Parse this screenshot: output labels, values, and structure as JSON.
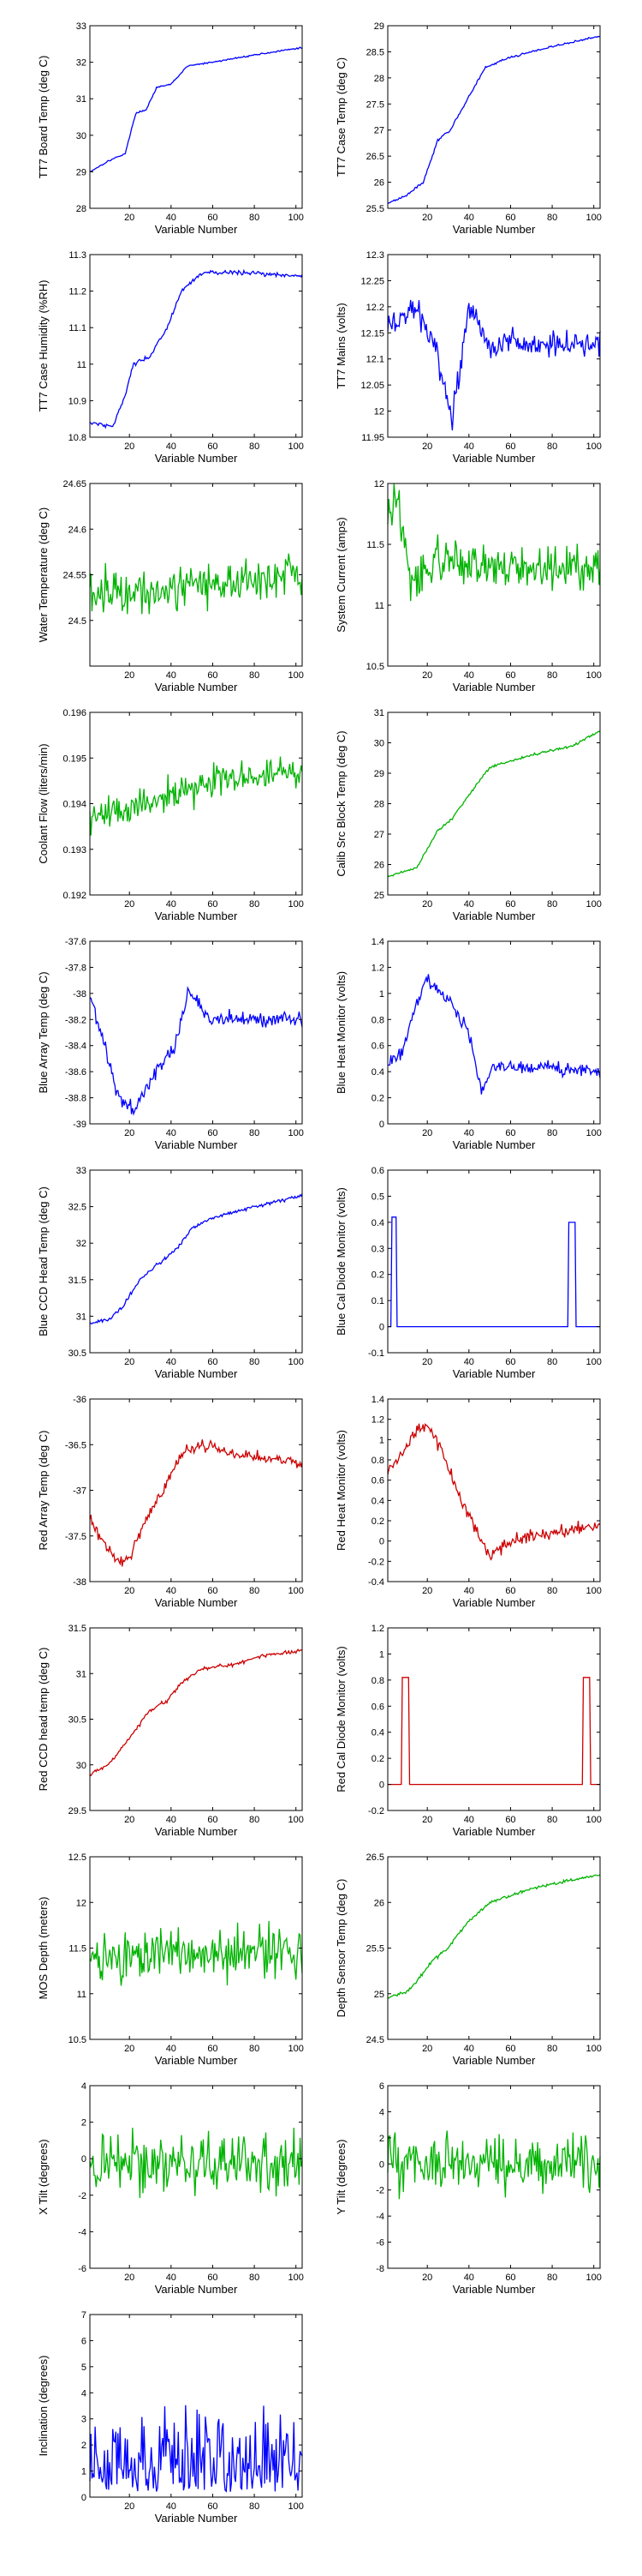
{
  "colors": {
    "blue": "#0000ff",
    "green": "#00b300",
    "red": "#cc0000",
    "axis": "#000000",
    "background": "#ffffff"
  },
  "chart_data": [
    {
      "type": "line",
      "ylabel": "TT7 Board Temp (deg C)",
      "xlabel": "Variable Number",
      "xlim": [
        1,
        103
      ],
      "ylim": [
        28,
        33
      ],
      "yticks": [
        28,
        29,
        30,
        31,
        32,
        33
      ],
      "xticks": [
        20,
        40,
        60,
        80,
        100
      ],
      "color": "blue",
      "shape": "ramp",
      "anchors": [
        [
          1,
          29.0
        ],
        [
          10,
          29.3
        ],
        [
          18,
          29.5
        ],
        [
          23,
          30.6
        ],
        [
          28,
          30.7
        ],
        [
          33,
          31.3
        ],
        [
          40,
          31.4
        ],
        [
          48,
          31.9
        ],
        [
          60,
          32.0
        ],
        [
          80,
          32.2
        ],
        [
          103,
          32.4
        ]
      ],
      "noise": 0.02
    },
    {
      "type": "line",
      "ylabel": "TT7 Case Temp (deg C)",
      "xlabel": "Variable Number",
      "xlim": [
        1,
        103
      ],
      "ylim": [
        25.5,
        29
      ],
      "yticks": [
        25.5,
        26,
        26.5,
        27,
        27.5,
        28,
        28.5,
        29
      ],
      "xticks": [
        20,
        40,
        60,
        80,
        100
      ],
      "color": "blue",
      "shape": "ramp",
      "anchors": [
        [
          1,
          25.6
        ],
        [
          10,
          25.75
        ],
        [
          18,
          26.0
        ],
        [
          25,
          26.8
        ],
        [
          31,
          27.0
        ],
        [
          38,
          27.5
        ],
        [
          48,
          28.2
        ],
        [
          60,
          28.4
        ],
        [
          80,
          28.6
        ],
        [
          103,
          28.8
        ]
      ],
      "noise": 0.02
    },
    {
      "type": "line",
      "ylabel": "TT7 Case Humidity (%RH)",
      "xlabel": "Variable Number",
      "xlim": [
        1,
        103
      ],
      "ylim": [
        10.8,
        11.3
      ],
      "yticks": [
        10.8,
        10.9,
        11,
        11.1,
        11.2,
        11.3
      ],
      "xticks": [
        20,
        40,
        60,
        80,
        100
      ],
      "color": "blue",
      "shape": "ramp",
      "anchors": [
        [
          1,
          10.84
        ],
        [
          12,
          10.83
        ],
        [
          17,
          10.9
        ],
        [
          22,
          11.0
        ],
        [
          30,
          11.02
        ],
        [
          38,
          11.1
        ],
        [
          45,
          11.2
        ],
        [
          55,
          11.25
        ],
        [
          80,
          11.25
        ],
        [
          103,
          11.24
        ]
      ],
      "noise": 0.006
    },
    {
      "type": "line",
      "ylabel": "TT7 Mains  (volts)",
      "xlabel": "Variable Number",
      "xlim": [
        1,
        103
      ],
      "ylim": [
        11.95,
        12.3
      ],
      "yticks": [
        11.95,
        12,
        12.05,
        12.1,
        12.15,
        12.2,
        12.25,
        12.3
      ],
      "xticks": [
        20,
        40,
        60,
        80,
        100
      ],
      "color": "blue",
      "shape": "noise",
      "anchors": [
        [
          1,
          12.16
        ],
        [
          15,
          12.2
        ],
        [
          25,
          12.1
        ],
        [
          32,
          11.98
        ],
        [
          40,
          12.2
        ],
        [
          50,
          12.13
        ],
        [
          103,
          12.13
        ]
      ],
      "noise": 0.025
    },
    {
      "type": "line",
      "ylabel": "Water Temperature (deg C)",
      "xlabel": "Variable Number",
      "xlim": [
        1,
        103
      ],
      "ylim": [
        24.45,
        24.65
      ],
      "yticks": [
        24.5,
        24.55,
        24.6,
        24.65
      ],
      "xticks": [
        20,
        40,
        60,
        80,
        100
      ],
      "color": "green",
      "shape": "noise",
      "anchors": [
        [
          1,
          24.53
        ],
        [
          103,
          24.55
        ]
      ],
      "noise": 0.025
    },
    {
      "type": "line",
      "ylabel": "System Current (amps)",
      "xlabel": "Variable Number",
      "xlim": [
        1,
        103
      ],
      "ylim": [
        10.5,
        12
      ],
      "yticks": [
        10.5,
        11,
        11.5,
        12
      ],
      "xticks": [
        20,
        40,
        60,
        80,
        100
      ],
      "color": "green",
      "shape": "noise",
      "anchors": [
        [
          1,
          11.7
        ],
        [
          6,
          11.9
        ],
        [
          12,
          11.1
        ],
        [
          20,
          11.35
        ],
        [
          103,
          11.3
        ]
      ],
      "noise": 0.18
    },
    {
      "type": "line",
      "ylabel": "Coolant Flow (liters/min)",
      "xlabel": "Variable Number",
      "xlim": [
        1,
        103
      ],
      "ylim": [
        0.192,
        0.196
      ],
      "yticks": [
        0.192,
        0.193,
        0.194,
        0.195,
        0.196
      ],
      "xticks": [
        20,
        40,
        60,
        80,
        100
      ],
      "color": "green",
      "shape": "noise",
      "anchors": [
        [
          1,
          0.1937
        ],
        [
          30,
          0.194
        ],
        [
          60,
          0.1945
        ],
        [
          103,
          0.1947
        ]
      ],
      "noise": 0.00035
    },
    {
      "type": "line",
      "ylabel": "Calib Src Block Temp (deg C)",
      "xlabel": "Variable Number",
      "xlim": [
        1,
        103
      ],
      "ylim": [
        25,
        31
      ],
      "yticks": [
        25,
        26,
        27,
        28,
        29,
        30,
        31
      ],
      "xticks": [
        20,
        40,
        60,
        80,
        100
      ],
      "color": "green",
      "shape": "ramp",
      "anchors": [
        [
          1,
          25.6
        ],
        [
          15,
          25.9
        ],
        [
          25,
          27.1
        ],
        [
          32,
          27.5
        ],
        [
          40,
          28.3
        ],
        [
          50,
          29.2
        ],
        [
          70,
          29.6
        ],
        [
          90,
          29.9
        ],
        [
          103,
          30.4
        ]
      ],
      "noise": 0.04
    },
    {
      "type": "line",
      "ylabel": "Blue Array Temp (deg C)",
      "xlabel": "Variable Number",
      "xlim": [
        1,
        103
      ],
      "ylim": [
        -39,
        -37.6
      ],
      "yticks": [
        -39,
        -38.8,
        -38.6,
        -38.4,
        -38.2,
        -38,
        -37.8,
        -37.6
      ],
      "xticks": [
        20,
        40,
        60,
        80,
        100
      ],
      "color": "blue",
      "shape": "noise",
      "anchors": [
        [
          1,
          -38.0
        ],
        [
          8,
          -38.4
        ],
        [
          15,
          -38.8
        ],
        [
          22,
          -38.9
        ],
        [
          32,
          -38.6
        ],
        [
          42,
          -38.4
        ],
        [
          48,
          -38.0
        ],
        [
          60,
          -38.2
        ],
        [
          103,
          -38.2
        ]
      ],
      "noise": 0.06
    },
    {
      "type": "line",
      "ylabel": "Blue Heat Monitor (volts)",
      "xlabel": "Variable Number",
      "xlim": [
        1,
        103
      ],
      "ylim": [
        0,
        1.4
      ],
      "yticks": [
        0,
        0.2,
        0.4,
        0.6,
        0.8,
        1,
        1.2,
        1.4
      ],
      "xticks": [
        20,
        40,
        60,
        80,
        100
      ],
      "color": "blue",
      "shape": "noise",
      "anchors": [
        [
          1,
          0.45
        ],
        [
          8,
          0.55
        ],
        [
          14,
          0.9
        ],
        [
          20,
          1.1
        ],
        [
          30,
          0.95
        ],
        [
          40,
          0.7
        ],
        [
          46,
          0.25
        ],
        [
          52,
          0.45
        ],
        [
          103,
          0.4
        ]
      ],
      "noise": 0.05
    },
    {
      "type": "line",
      "ylabel": "Blue CCD Head Temp (deg C)",
      "xlabel": "Variable Number",
      "xlim": [
        1,
        103
      ],
      "ylim": [
        30.5,
        33
      ],
      "yticks": [
        30.5,
        31,
        31.5,
        32,
        32.5,
        33
      ],
      "xticks": [
        20,
        40,
        60,
        80,
        100
      ],
      "color": "blue",
      "shape": "ramp",
      "anchors": [
        [
          1,
          30.9
        ],
        [
          10,
          30.95
        ],
        [
          16,
          31.1
        ],
        [
          25,
          31.5
        ],
        [
          33,
          31.7
        ],
        [
          42,
          31.9
        ],
        [
          50,
          32.2
        ],
        [
          60,
          32.35
        ],
        [
          80,
          32.5
        ],
        [
          103,
          32.65
        ]
      ],
      "noise": 0.025
    },
    {
      "type": "line",
      "ylabel": "Blue Cal Diode Monitor (volts)",
      "xlabel": "Variable Number",
      "xlim": [
        1,
        103
      ],
      "ylim": [
        -0.1,
        0.6
      ],
      "yticks": [
        -0.1,
        0,
        0.1,
        0.2,
        0.3,
        0.4,
        0.5,
        0.6
      ],
      "xticks": [
        20,
        40,
        60,
        80,
        100
      ],
      "color": "blue",
      "shape": "pulse",
      "base": 0,
      "pulses": [
        [
          3,
          5,
          0.42
        ],
        [
          88,
          91,
          0.4
        ]
      ]
    },
    {
      "type": "line",
      "ylabel": "Red Array Temp (deg C)",
      "xlabel": "Variable Number",
      "xlim": [
        1,
        103
      ],
      "ylim": [
        -38,
        -36
      ],
      "yticks": [
        -38,
        -37.5,
        -37,
        -36.5,
        -36
      ],
      "xticks": [
        20,
        40,
        60,
        80,
        100
      ],
      "color": "red",
      "shape": "noise",
      "anchors": [
        [
          1,
          -37.3
        ],
        [
          8,
          -37.6
        ],
        [
          15,
          -37.8
        ],
        [
          20,
          -37.75
        ],
        [
          28,
          -37.3
        ],
        [
          36,
          -37.0
        ],
        [
          45,
          -36.6
        ],
        [
          55,
          -36.5
        ],
        [
          70,
          -36.6
        ],
        [
          103,
          -36.7
        ]
      ],
      "noise": 0.06
    },
    {
      "type": "line",
      "ylabel": "Red Heat Monitor (volts)",
      "xlabel": "Variable Number",
      "xlim": [
        1,
        103
      ],
      "ylim": [
        -0.4,
        1.4
      ],
      "yticks": [
        -0.4,
        -0.2,
        0,
        0.2,
        0.4,
        0.6,
        0.8,
        1,
        1.2,
        1.4
      ],
      "xticks": [
        20,
        40,
        60,
        80,
        100
      ],
      "color": "red",
      "shape": "noise",
      "anchors": [
        [
          1,
          0.7
        ],
        [
          8,
          0.85
        ],
        [
          15,
          1.1
        ],
        [
          20,
          1.15
        ],
        [
          28,
          0.85
        ],
        [
          36,
          0.4
        ],
        [
          44,
          0.1
        ],
        [
          50,
          -0.15
        ],
        [
          60,
          0.0
        ],
        [
          80,
          0.08
        ],
        [
          103,
          0.15
        ]
      ],
      "noise": 0.06
    },
    {
      "type": "line",
      "ylabel": "Red CCD head temp (deg C)",
      "xlabel": "Variable Number",
      "xlim": [
        1,
        103
      ],
      "ylim": [
        29.5,
        31.5
      ],
      "yticks": [
        29.5,
        30,
        30.5,
        31,
        31.5
      ],
      "xticks": [
        20,
        40,
        60,
        80,
        100
      ],
      "color": "red",
      "shape": "ramp",
      "anchors": [
        [
          1,
          29.9
        ],
        [
          10,
          30.0
        ],
        [
          20,
          30.3
        ],
        [
          30,
          30.6
        ],
        [
          38,
          30.7
        ],
        [
          45,
          30.9
        ],
        [
          55,
          31.05
        ],
        [
          70,
          31.1
        ],
        [
          85,
          31.2
        ],
        [
          103,
          31.25
        ]
      ],
      "noise": 0.02
    },
    {
      "type": "line",
      "ylabel": "Red Cal Diode Monitor (volts)",
      "xlabel": "Variable Number",
      "xlim": [
        1,
        103
      ],
      "ylim": [
        -0.2,
        1.2
      ],
      "yticks": [
        -0.2,
        0,
        0.2,
        0.4,
        0.6,
        0.8,
        1,
        1.2
      ],
      "xticks": [
        20,
        40,
        60,
        80,
        100
      ],
      "color": "red",
      "shape": "pulse",
      "base": 0,
      "pulses": [
        [
          8,
          11,
          0.82
        ],
        [
          95,
          98,
          0.82
        ]
      ]
    },
    {
      "type": "line",
      "ylabel": "MOS Depth  (meters)",
      "xlabel": "Variable Number",
      "xlim": [
        1,
        103
      ],
      "ylim": [
        10.5,
        12.5
      ],
      "yticks": [
        10.5,
        11,
        11.5,
        12,
        12.5
      ],
      "xticks": [
        20,
        40,
        60,
        80,
        100
      ],
      "color": "green",
      "shape": "noise",
      "anchors": [
        [
          1,
          11.4
        ],
        [
          103,
          11.45
        ]
      ],
      "noise": 0.28
    },
    {
      "type": "line",
      "ylabel": "Depth Sensor Temp (deg C)",
      "xlabel": "Variable Number",
      "xlim": [
        1,
        103
      ],
      "ylim": [
        24.5,
        26.5
      ],
      "yticks": [
        24.5,
        25,
        25.5,
        26,
        26.5
      ],
      "xticks": [
        20,
        40,
        60,
        80,
        100
      ],
      "color": "green",
      "shape": "ramp",
      "anchors": [
        [
          1,
          24.95
        ],
        [
          12,
          25.05
        ],
        [
          22,
          25.35
        ],
        [
          30,
          25.5
        ],
        [
          40,
          25.8
        ],
        [
          50,
          26.0
        ],
        [
          70,
          26.15
        ],
        [
          90,
          26.25
        ],
        [
          103,
          26.3
        ]
      ],
      "noise": 0.02
    },
    {
      "type": "line",
      "ylabel": "X Tilt  (degrees)",
      "xlabel": "Variable Number",
      "xlim": [
        1,
        103
      ],
      "ylim": [
        -6,
        4
      ],
      "yticks": [
        -6,
        -4,
        -2,
        0,
        2,
        4
      ],
      "xticks": [
        20,
        40,
        60,
        80,
        100
      ],
      "color": "green",
      "shape": "noise",
      "anchors": [
        [
          1,
          -0.2
        ],
        [
          103,
          -0.5
        ]
      ],
      "noise": 1.6
    },
    {
      "type": "line",
      "ylabel": "Y Tilt  (degrees)",
      "xlabel": "Variable Number",
      "xlim": [
        1,
        103
      ],
      "ylim": [
        -8,
        6
      ],
      "yticks": [
        -8,
        -6,
        -4,
        -2,
        0,
        2,
        4,
        6
      ],
      "xticks": [
        20,
        40,
        60,
        80,
        100
      ],
      "color": "green",
      "shape": "noise",
      "anchors": [
        [
          1,
          0.2
        ],
        [
          103,
          0.0
        ]
      ],
      "noise": 2.2
    },
    {
      "type": "line",
      "ylabel": "Inclination  (degrees)",
      "xlabel": "Variable Number",
      "xlim": [
        1,
        103
      ],
      "ylim": [
        0,
        7
      ],
      "yticks": [
        0,
        1,
        2,
        3,
        4,
        5,
        6,
        7
      ],
      "xticks": [
        20,
        40,
        60,
        80,
        100
      ],
      "color": "blue",
      "shape": "positive",
      "anchors": [
        [
          1,
          1.8
        ],
        [
          103,
          2.2
        ]
      ],
      "noise": 1.6
    }
  ]
}
